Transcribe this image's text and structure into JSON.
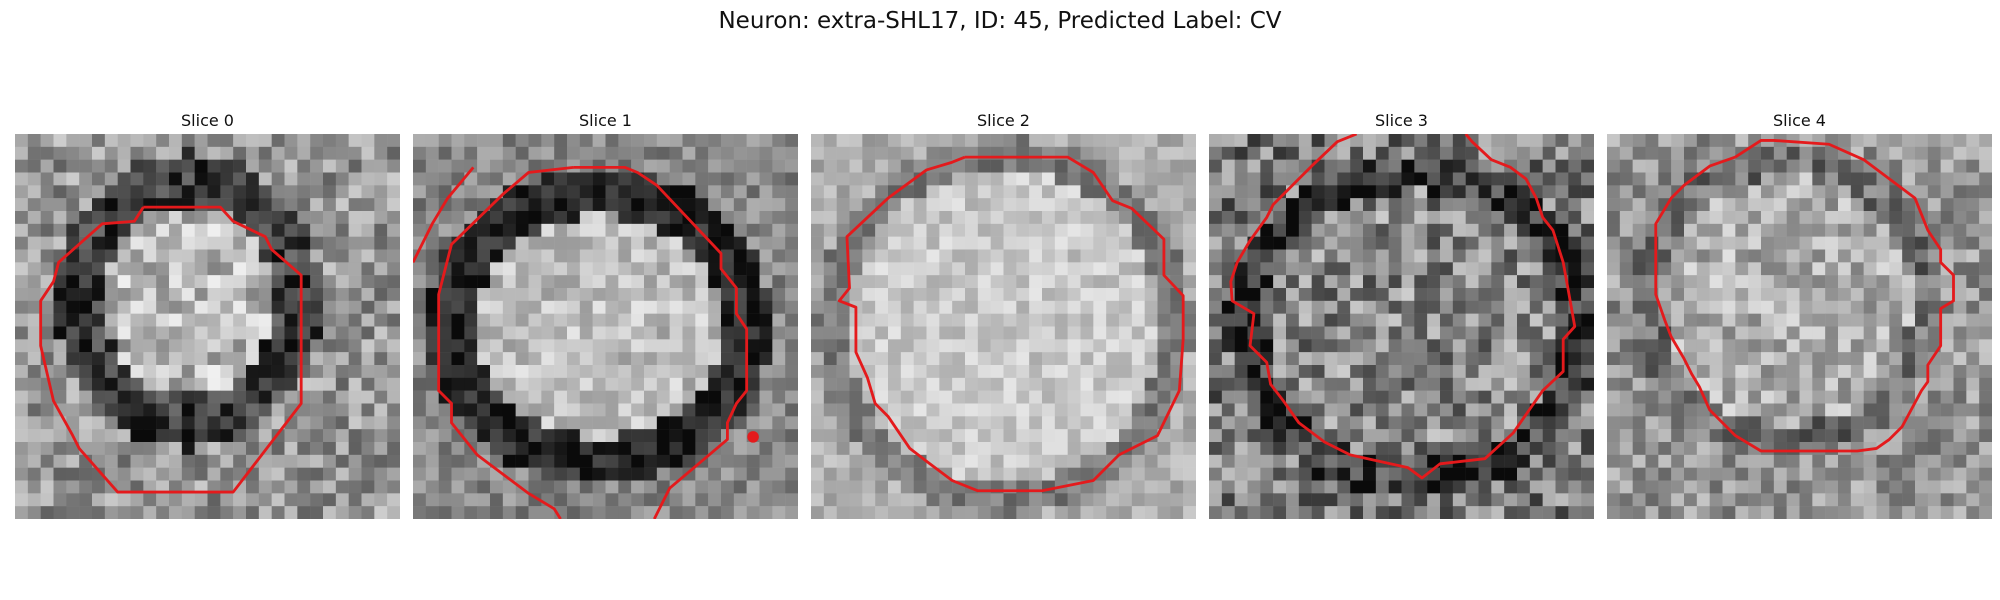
{
  "figure": {
    "title": "Neuron: extra-SHL17, ID: 45, Predicted Label: CV"
  },
  "colors": {
    "contour": "#e41a1c"
  },
  "panels": [
    {
      "label": "Slice 0"
    },
    {
      "label": "Slice 1"
    },
    {
      "label": "Slice 2"
    },
    {
      "label": "Slice 3"
    },
    {
      "label": "Slice 4"
    }
  ]
}
